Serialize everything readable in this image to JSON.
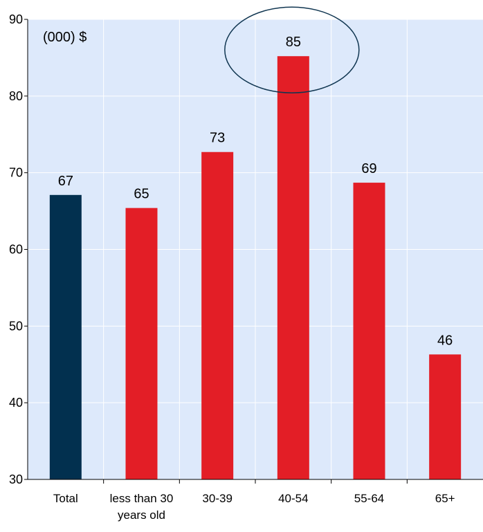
{
  "chart_data": {
    "type": "bar",
    "unit_label": "(000) $",
    "categories": [
      "Total",
      "less than 30 years old",
      "30-39",
      "40-54",
      "55-64",
      "65+"
    ],
    "category_lines": [
      [
        "Total"
      ],
      [
        "less than 30",
        "years old"
      ],
      [
        "30-39"
      ],
      [
        "40-54"
      ],
      [
        "55-64"
      ],
      [
        "65+"
      ]
    ],
    "values": [
      67.1,
      65.4,
      72.7,
      85.2,
      68.7,
      46.3
    ],
    "value_labels": [
      "67",
      "65",
      "73",
      "85",
      "69",
      "46"
    ],
    "ylim": [
      30,
      90
    ],
    "yticks": [
      30,
      40,
      50,
      60,
      70,
      80,
      90
    ],
    "grid": true,
    "highlighted_category": "40-54",
    "colors": {
      "total": "#02304f",
      "bars": "#e31e26",
      "plot_background": "#dde9fb",
      "gridline": "#ffffff",
      "highlight_ring": "#0f3550"
    }
  }
}
